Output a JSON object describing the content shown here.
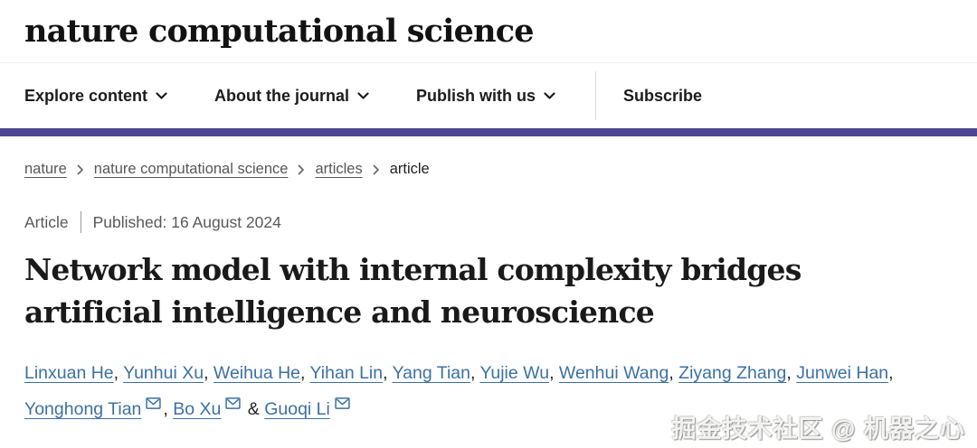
{
  "header": {
    "logo": "nature computational science"
  },
  "nav": {
    "items": [
      {
        "label": "Explore content",
        "dropdown": true
      },
      {
        "label": "About the journal",
        "dropdown": true
      },
      {
        "label": "Publish with us",
        "dropdown": true
      }
    ],
    "subscribe_label": "Subscribe"
  },
  "breadcrumb": {
    "items": [
      {
        "label": "nature",
        "link": true
      },
      {
        "label": "nature computational science",
        "link": true
      },
      {
        "label": "articles",
        "link": true
      },
      {
        "label": "article",
        "link": false
      }
    ]
  },
  "meta": {
    "type": "Article",
    "published": "Published: 16 August 2024"
  },
  "title": {
    "line1": "Network model with internal complexity bridges",
    "line2": "artificial intelligence and neuroscience"
  },
  "authors": {
    "list": [
      {
        "name": "Linxuan He",
        "envelope": false
      },
      {
        "name": "Yunhui Xu",
        "envelope": false
      },
      {
        "name": "Weihua He",
        "envelope": false
      },
      {
        "name": "Yihan Lin",
        "envelope": false
      },
      {
        "name": "Yang Tian",
        "envelope": false
      },
      {
        "name": "Yujie Wu",
        "envelope": false
      },
      {
        "name": "Wenhui Wang",
        "envelope": false
      },
      {
        "name": "Ziyang Zhang",
        "envelope": false
      },
      {
        "name": "Junwei Han",
        "envelope": false
      },
      {
        "name": "Yonghong Tian",
        "envelope": true
      },
      {
        "name": "Bo Xu",
        "envelope": true
      },
      {
        "name": "Guoqi Li",
        "envelope": true
      }
    ],
    "separator": ", ",
    "last_separator": " & "
  },
  "icons": {
    "nav_dropdown": "chevron-down-icon",
    "breadcrumb_separator": "chevron-right-icon",
    "email": "envelope-icon"
  },
  "watermark": {
    "text": "掘金技术社区 @ 机器之心"
  },
  "colors": {
    "accent_purple": "#4c4691",
    "link_blue": "#3c70a4"
  }
}
